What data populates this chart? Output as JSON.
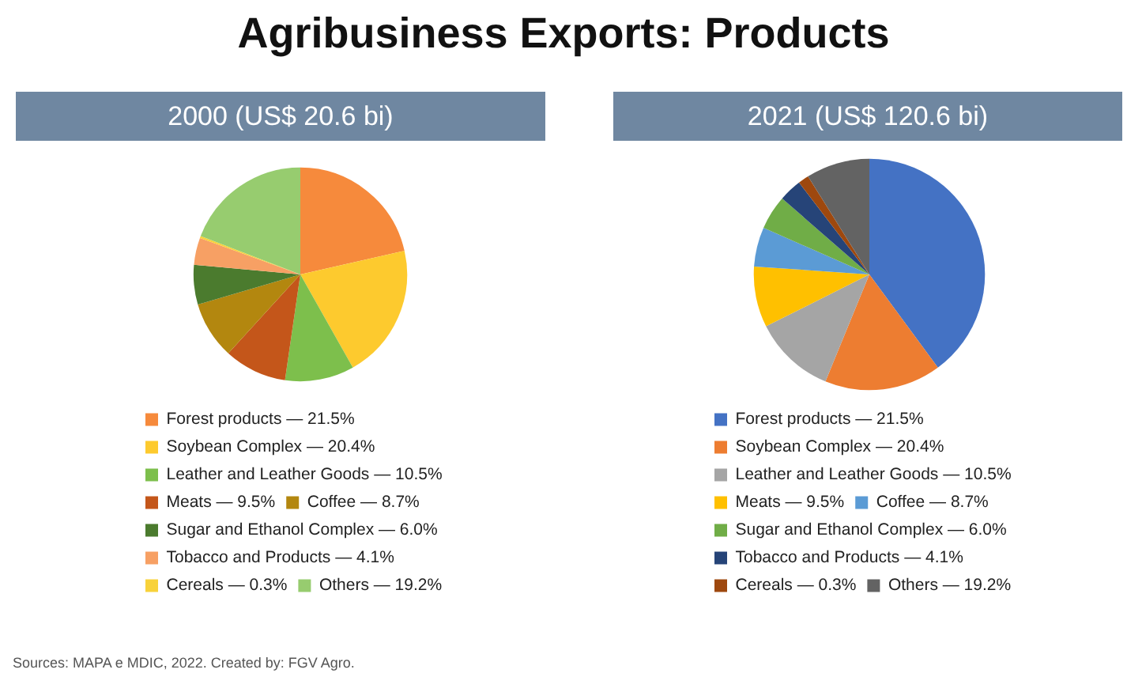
{
  "chart_data": [
    {
      "type": "pie",
      "title": "2000 (US$ 20.6 bi)",
      "annotations": [
        "Agribusiness Exports: Products",
        "Sources: MAPA e MDIC, 2022. Created by: FGV Agro."
      ],
      "legend": "bottom",
      "categories": [
        "Forest products — 21.5%",
        "Soybean Complex — 20.4%",
        "Leather and Leather Goods — 10.5%",
        "Meats — 9.5%",
        "Coffee — 8.7%",
        "Sugar and Ethanol Complex — 6.0%",
        "Tobacco and Products — 4.1%",
        "Cereals — 0.3%",
        "Others — 19.2%"
      ],
      "values": [
        21.5,
        20.4,
        10.5,
        9.5,
        8.7,
        6.0,
        4.1,
        0.3,
        19.2
      ],
      "colors": [
        "#f68a3c",
        "#fdca2e",
        "#7dbf4c",
        "#c4561a",
        "#b3870f",
        "#4b7b2e",
        "#f7a064",
        "#f8d23a",
        "#97cc6f"
      ]
    },
    {
      "type": "pie",
      "title": "2021 (US$ 120.6 bi)",
      "legend": "bottom",
      "categories": [
        "Forest products — 21.5%",
        "Soybean Complex — 20.4%",
        "Leather and Leather Goods — 10.5%",
        "Meats — 9.5%",
        "Coffee — 8.7%",
        "Sugar and Ethanol Complex — 6.0%",
        "Tobacco and Products — 4.1%",
        "Cereals — 0.3%",
        "Others — 19.2%"
      ],
      "values": [
        39.9,
        16.3,
        11.4,
        8.5,
        5.5,
        4.8,
        3.2,
        1.5,
        8.9
      ],
      "colors": [
        "#4472c4",
        "#ed7d31",
        "#a5a5a5",
        "#ffc000",
        "#5b9bd5",
        "#70ad47",
        "#264478",
        "#9e480e",
        "#636363"
      ]
    }
  ]
}
